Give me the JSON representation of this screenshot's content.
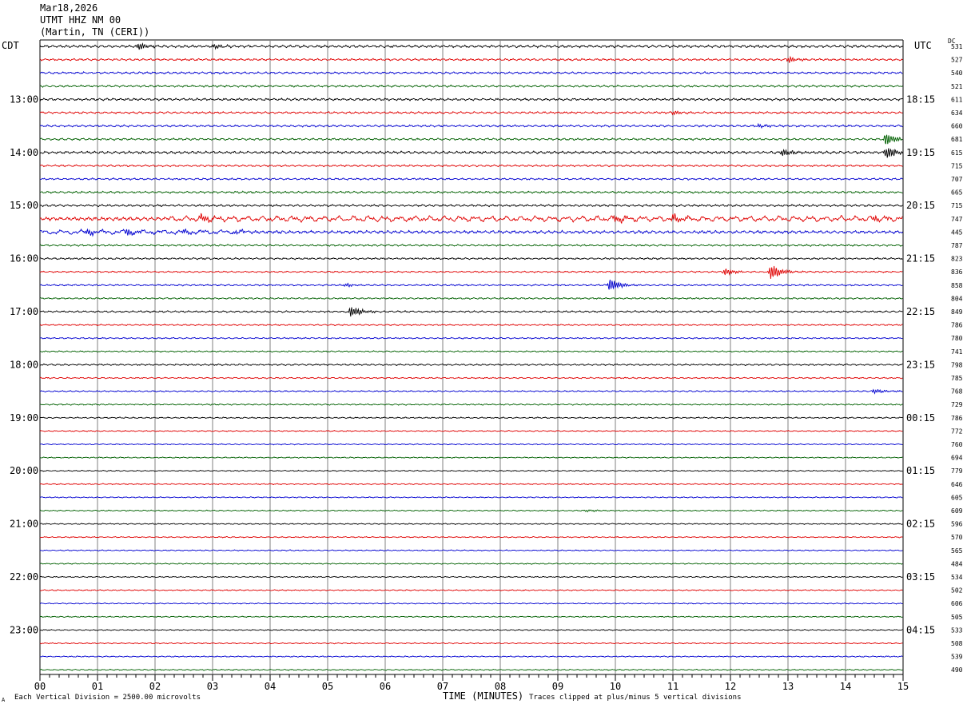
{
  "header": {
    "date": "Mar18,2026",
    "station": "UTMT HHZ NM 00",
    "location": "(Martin, TN (CERI))"
  },
  "left_zone": "CDT",
  "right_zone": "UTC",
  "dc_label": "DC",
  "footer": {
    "scale": "Each Vertical Division = 2500.00 microvolts",
    "xlabel": "TIME (MINUTES)",
    "clip_note": "Traces clipped at plus/minus 5 vertical divisions",
    "corner_mark": "A"
  },
  "colors": {
    "black": "#000000",
    "red": "#e00000",
    "blue": "#0000d0",
    "green": "#006000",
    "grid": "#808080"
  },
  "chart_data": {
    "type": "line",
    "title": "UTMT HHZ NM 00",
    "xlabel": "TIME (MINUTES)",
    "xlim": [
      0,
      15
    ],
    "x_ticks": [
      "00",
      "01",
      "02",
      "03",
      "04",
      "05",
      "06",
      "07",
      "08",
      "09",
      "10",
      "11",
      "12",
      "13",
      "14",
      "15"
    ],
    "trace_colors": [
      "black",
      "red",
      "blue",
      "green"
    ],
    "left_time_labels": [
      {
        "row": 4,
        "label": "13:00"
      },
      {
        "row": 8,
        "label": "14:00"
      },
      {
        "row": 12,
        "label": "15:00"
      },
      {
        "row": 16,
        "label": "16:00"
      },
      {
        "row": 20,
        "label": "17:00"
      },
      {
        "row": 24,
        "label": "18:00"
      },
      {
        "row": 28,
        "label": "19:00"
      },
      {
        "row": 32,
        "label": "20:00"
      },
      {
        "row": 36,
        "label": "21:00"
      },
      {
        "row": 40,
        "label": "22:00"
      },
      {
        "row": 44,
        "label": "23:00"
      }
    ],
    "right_time_labels": [
      {
        "row": 4,
        "label": "18:15"
      },
      {
        "row": 8,
        "label": "19:15"
      },
      {
        "row": 12,
        "label": "20:15"
      },
      {
        "row": 16,
        "label": "21:15"
      },
      {
        "row": 20,
        "label": "22:15"
      },
      {
        "row": 24,
        "label": "23:15"
      },
      {
        "row": 28,
        "label": "00:15"
      },
      {
        "row": 32,
        "label": "01:15"
      },
      {
        "row": 36,
        "label": "02:15"
      },
      {
        "row": 40,
        "label": "03:15"
      },
      {
        "row": 44,
        "label": "04:15"
      }
    ],
    "dc_values": [
      531,
      527,
      540,
      521,
      611,
      634,
      660,
      681,
      615,
      715,
      707,
      665,
      715,
      747,
      445,
      787,
      823,
      836,
      858,
      804,
      849,
      786,
      780,
      741,
      798,
      785,
      768,
      729,
      786,
      772,
      760,
      694,
      779,
      646,
      605,
      609,
      596,
      570,
      565,
      484,
      534,
      502,
      606,
      505,
      533,
      508,
      539,
      490
    ],
    "amplitudes": [
      1.1,
      0.9,
      0.9,
      0.9,
      1.0,
      0.9,
      0.9,
      0.9,
      1.1,
      0.8,
      0.8,
      0.9,
      0.9,
      1.6,
      1.3,
      0.8,
      0.8,
      0.7,
      0.7,
      0.7,
      0.8,
      0.6,
      0.6,
      0.6,
      0.7,
      0.6,
      0.6,
      0.6,
      0.6,
      0.5,
      0.5,
      0.5,
      0.5,
      0.5,
      0.5,
      0.5,
      0.5,
      0.5,
      0.5,
      0.5,
      0.5,
      0.5,
      0.5,
      0.5,
      0.5,
      0.5,
      0.5,
      0.5
    ],
    "events": [
      {
        "row": 0,
        "minute": 1.7,
        "amp": 4
      },
      {
        "row": 0,
        "minute": 3.0,
        "amp": 2.5
      },
      {
        "row": 1,
        "minute": 13.0,
        "amp": 3
      },
      {
        "row": 5,
        "minute": 11.0,
        "amp": 2.5
      },
      {
        "row": 6,
        "minute": 12.5,
        "amp": 2
      },
      {
        "row": 7,
        "minute": 14.7,
        "amp": 8
      },
      {
        "row": 8,
        "minute": 12.9,
        "amp": 4
      },
      {
        "row": 8,
        "minute": 14.7,
        "amp": 8
      },
      {
        "row": 13,
        "minute": 2.8,
        "amp": 4
      },
      {
        "row": 13,
        "minute": 10.0,
        "amp": 4
      },
      {
        "row": 13,
        "minute": 11.0,
        "amp": 4
      },
      {
        "row": 13,
        "minute": 14.5,
        "amp": 3
      },
      {
        "row": 14,
        "minute": 0.8,
        "amp": 4
      },
      {
        "row": 14,
        "minute": 1.5,
        "amp": 4
      },
      {
        "row": 14,
        "minute": 2.5,
        "amp": 3
      },
      {
        "row": 14,
        "minute": 3.4,
        "amp": 3
      },
      {
        "row": 17,
        "minute": 11.9,
        "amp": 4
      },
      {
        "row": 17,
        "minute": 12.7,
        "amp": 9
      },
      {
        "row": 18,
        "minute": 5.3,
        "amp": 2
      },
      {
        "row": 18,
        "minute": 9.9,
        "amp": 8
      },
      {
        "row": 20,
        "minute": 5.4,
        "amp": 7
      },
      {
        "row": 26,
        "minute": 14.5,
        "amp": 3
      },
      {
        "row": 35,
        "minute": 9.5,
        "amp": 1.5
      }
    ]
  }
}
